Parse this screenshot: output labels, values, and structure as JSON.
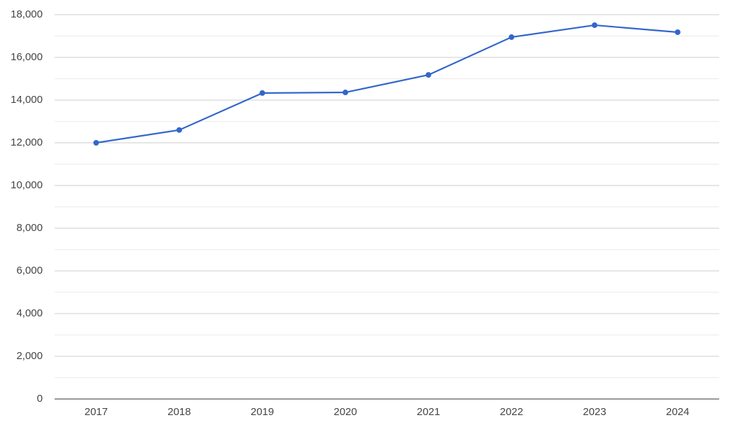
{
  "chart_data": {
    "type": "line",
    "categories": [
      "2017",
      "2018",
      "2019",
      "2020",
      "2021",
      "2022",
      "2023",
      "2024"
    ],
    "series": [
      {
        "color": "#3366cc",
        "values": [
          12000,
          12600,
          14330,
          14360,
          15180,
          16950,
          17510,
          17180
        ]
      }
    ],
    "ylim": [
      0,
      18000
    ],
    "yticks": [
      0,
      {
        "value": 2000,
        "label": "2,000"
      },
      {
        "value": 4000,
        "label": "4,000"
      },
      {
        "value": 6000,
        "label": "6,000"
      },
      {
        "value": 8000,
        "label": "8,000"
      },
      {
        "value": 10000,
        "label": "10,000"
      },
      {
        "value": 12000,
        "label": "12,000"
      },
      {
        "value": 14000,
        "label": "14,000"
      },
      {
        "value": 16000,
        "label": "16,000"
      },
      {
        "value": 18000,
        "label": "18,000"
      }
    ],
    "minor_yticks": [
      1000,
      3000,
      5000,
      7000,
      9000,
      11000,
      13000,
      15000,
      17000
    ],
    "grid": true
  }
}
